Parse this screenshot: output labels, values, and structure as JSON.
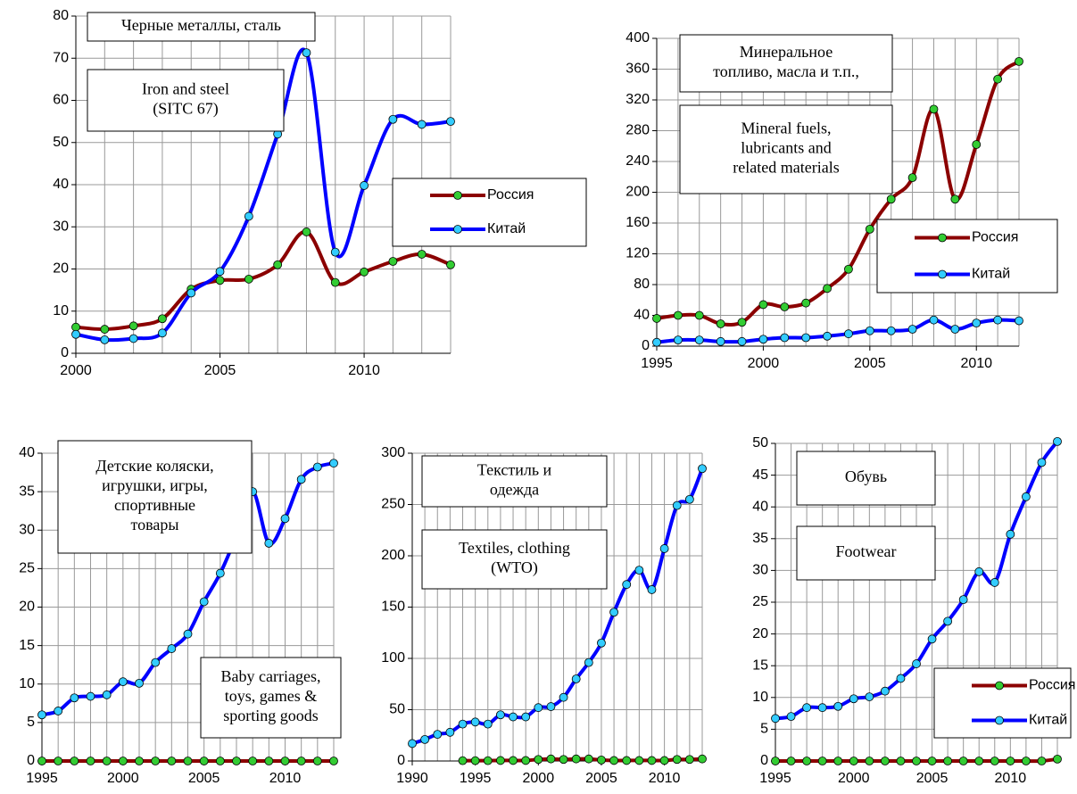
{
  "chart_data": [
    {
      "type": "line",
      "annotations": [
        [
          "Черные металлы, сталь"
        ],
        [
          "Iron and steel",
          "(SITC 67)"
        ]
      ],
      "x": [
        2000,
        2001,
        2002,
        2003,
        2004,
        2005,
        2006,
        2007,
        2008,
        2009,
        2010,
        2011,
        2012,
        2013
      ],
      "xlim": [
        2000,
        2013
      ],
      "xticks": [
        2000,
        2005,
        2010
      ],
      "ylim": [
        0,
        80
      ],
      "yticks": [
        0,
        10,
        20,
        30,
        40,
        50,
        60,
        70,
        80
      ],
      "grid": true,
      "legend": true,
      "series": [
        {
          "name": "Россия",
          "color": "#8b0000",
          "marker_color": "#33cc33",
          "values": [
            6.2,
            5.7,
            6.5,
            8.2,
            15.2,
            17.3,
            17.6,
            21,
            28.8,
            16.8,
            19.3,
            21.8,
            23.5,
            21
          ]
        },
        {
          "name": "Китай",
          "color": "#0000ff",
          "marker_color": "#33ccff",
          "values": [
            4.5,
            3.2,
            3.5,
            4.8,
            14.3,
            19.4,
            32.5,
            52,
            71.3,
            24,
            39.8,
            55.5,
            54.3,
            55
          ]
        }
      ]
    },
    {
      "type": "line",
      "annotations": [
        [
          "Минеральное",
          "топливо, масла и т.п.,"
        ],
        [
          "Mineral fuels,",
          "lubricants and",
          "related materials"
        ]
      ],
      "x": [
        1995,
        1996,
        1997,
        1998,
        1999,
        2000,
        2001,
        2002,
        2003,
        2004,
        2005,
        2006,
        2007,
        2008,
        2009,
        2010,
        2011,
        2012
      ],
      "xlim": [
        1995,
        2012
      ],
      "xticks": [
        1995,
        2000,
        2005,
        2010
      ],
      "ylim": [
        0,
        400
      ],
      "yticks": [
        0,
        40,
        80,
        120,
        160,
        200,
        240,
        280,
        320,
        360,
        400
      ],
      "grid": true,
      "legend": true,
      "series": [
        {
          "name": "Россия",
          "color": "#8b0000",
          "marker_color": "#33cc33",
          "values": [
            36,
            40,
            40,
            29,
            31,
            54,
            51,
            56,
            75,
            100,
            152,
            191,
            219,
            308,
            191,
            262,
            347,
            370
          ]
        },
        {
          "name": "Китай",
          "color": "#0000ff",
          "marker_color": "#33ccff",
          "values": [
            5,
            8,
            8,
            6,
            6,
            9,
            11,
            11,
            13,
            16,
            20,
            20,
            22,
            34,
            22,
            30,
            34,
            33
          ]
        }
      ]
    },
    {
      "type": "line",
      "annotations": [
        [
          "Детские коляски,",
          "игрушки, игры,",
          "спортивные",
          "товары"
        ],
        [
          "Baby carriages,",
          "toys, games &",
          "sporting goods"
        ]
      ],
      "x": [
        1995,
        1996,
        1997,
        1998,
        1999,
        2000,
        2001,
        2002,
        2003,
        2004,
        2005,
        2006,
        2007,
        2008,
        2009,
        2010,
        2011,
        2012,
        2013
      ],
      "xlim": [
        1995,
        2013
      ],
      "xticks": [
        1995,
        2000,
        2005,
        2010
      ],
      "ylim": [
        0,
        40
      ],
      "yticks": [
        0,
        5,
        10,
        15,
        20,
        25,
        30,
        35,
        40
      ],
      "grid": true,
      "legend": false,
      "series": [
        {
          "name": "Россия",
          "color": "#8b0000",
          "marker_color": "#33cc33",
          "values": [
            0,
            0,
            0,
            0,
            0,
            0,
            0,
            0,
            0,
            0,
            0,
            0,
            0,
            0,
            0,
            0,
            0,
            0,
            0
          ]
        },
        {
          "name": "Китай",
          "color": "#0000ff",
          "marker_color": "#33ccff",
          "values": [
            6,
            6.5,
            8.2,
            8.4,
            8.6,
            10.3,
            10.1,
            12.8,
            14.6,
            16.5,
            20.7,
            24.4,
            29.3,
            35,
            28.3,
            31.5,
            36.6,
            38.2,
            38.7
          ]
        }
      ]
    },
    {
      "type": "line",
      "annotations": [
        [
          "Текстиль и",
          "одежда"
        ],
        [
          "Textiles, clothing",
          "(WTO)"
        ]
      ],
      "x": [
        1990,
        1991,
        1992,
        1993,
        1994,
        1995,
        1996,
        1997,
        1998,
        1999,
        2000,
        2001,
        2002,
        2003,
        2004,
        2005,
        2006,
        2007,
        2008,
        2009,
        2010,
        2011,
        2012,
        2013
      ],
      "xlim": [
        1990,
        2013
      ],
      "xticks": [
        1990,
        1995,
        2000,
        2005,
        2010
      ],
      "ylim": [
        0,
        300
      ],
      "yticks": [
        0,
        50,
        100,
        150,
        200,
        250,
        300
      ],
      "grid": true,
      "legend": false,
      "series": [
        {
          "name": "Россия",
          "color": "#8b0000",
          "marker_color": "#33cc33",
          "values": [
            null,
            null,
            null,
            null,
            0.3,
            0.3,
            0.3,
            0.5,
            0.5,
            0.5,
            1.5,
            2,
            1.5,
            2,
            2,
            1,
            0.5,
            0.5,
            0.5,
            0.5,
            0.5,
            1.5,
            1.5,
            2
          ]
        },
        {
          "name": "Китай",
          "color": "#0000ff",
          "marker_color": "#33ccff",
          "values": [
            17,
            21,
            26,
            28,
            36,
            38,
            36,
            45,
            43,
            43,
            52,
            53,
            62,
            80,
            96,
            115,
            145,
            172,
            186,
            167,
            207,
            249,
            255,
            285
          ]
        }
      ]
    },
    {
      "type": "line",
      "annotations": [
        [
          "Обувь"
        ],
        [
          "Footwear"
        ]
      ],
      "x": [
        1995,
        1996,
        1997,
        1998,
        1999,
        2000,
        2001,
        2002,
        2003,
        2004,
        2005,
        2006,
        2007,
        2008,
        2009,
        2010,
        2011,
        2012,
        2013
      ],
      "xlim": [
        1995,
        2013
      ],
      "xticks": [
        1995,
        2000,
        2005,
        2010
      ],
      "ylim": [
        0,
        50
      ],
      "yticks": [
        0,
        5,
        10,
        15,
        20,
        25,
        30,
        35,
        40,
        45,
        50
      ],
      "grid": true,
      "legend": true,
      "series": [
        {
          "name": "Россия",
          "color": "#8b0000",
          "marker_color": "#33cc33",
          "values": [
            0,
            0,
            0,
            0,
            0,
            0,
            0,
            0,
            0,
            0,
            0,
            0,
            0,
            0,
            0,
            0,
            0,
            0,
            0.3
          ]
        },
        {
          "name": "Китай",
          "color": "#0000ff",
          "marker_color": "#33ccff",
          "values": [
            6.7,
            7,
            8.4,
            8.4,
            8.6,
            9.8,
            10.1,
            11,
            13,
            15.3,
            19.2,
            22,
            25.4,
            29.8,
            28.1,
            35.7,
            41.6,
            47,
            50.3
          ]
        }
      ]
    }
  ]
}
